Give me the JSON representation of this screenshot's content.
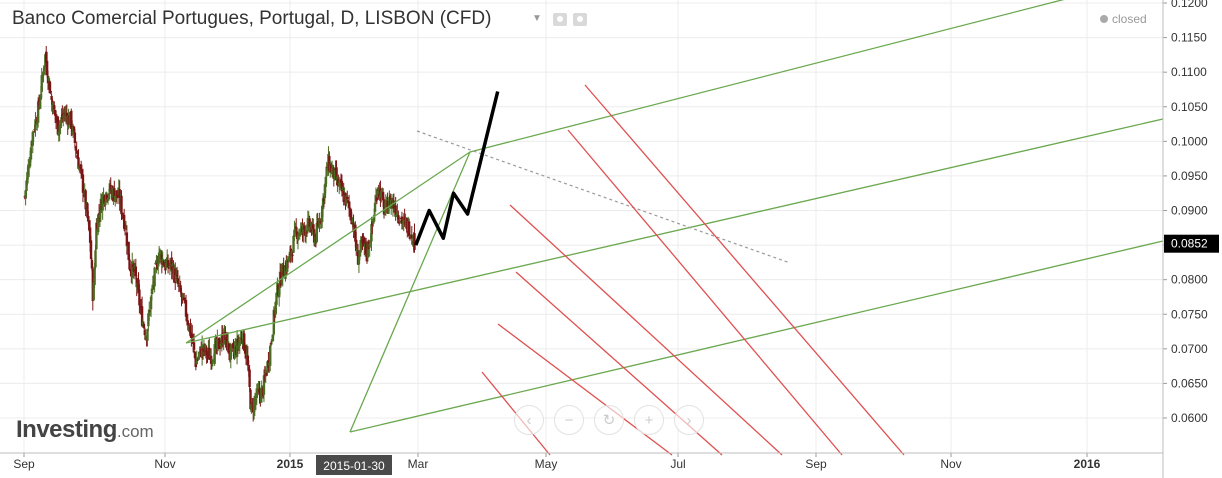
{
  "header": {
    "title": "Banco Comercial Portugues, Portugal, D, LISBON (CFD)",
    "status": "closed",
    "icons": [
      "chevron-down-icon",
      "eye-icon",
      "gear-icon"
    ]
  },
  "logo": {
    "brand": "Investing",
    "suffix": ".com"
  },
  "navigation": [
    {
      "name": "scroll-left-button",
      "glyph": "‹"
    },
    {
      "name": "zoom-out-button",
      "glyph": "−"
    },
    {
      "name": "reset-button",
      "glyph": "↻"
    },
    {
      "name": "zoom-in-button",
      "glyph": "+"
    },
    {
      "name": "scroll-right-button",
      "glyph": "›"
    }
  ],
  "colors": {
    "up_candle": "#4a6b22",
    "down_candle": "#7a1515",
    "pitchfork_green": "#6aa84f",
    "red_lines": "#e05050",
    "projection": "#000000",
    "trend_dashed": "#999999",
    "price_tag_bg": "#000000"
  },
  "chart_data": {
    "type": "candlestick",
    "symbol": "Banco Comercial Portugues, Portugal, D, LISBON (CFD)",
    "x_tick_labels": [
      "Sep",
      "Nov",
      "2015",
      "Mar",
      "May",
      "Jul",
      "Sep",
      "Nov",
      "2016"
    ],
    "crosshair_date_label": "2015-01-30",
    "y_tick_labels": [
      "0.1200",
      "0.1150",
      "0.1100",
      "0.1050",
      "0.1000",
      "0.0950",
      "0.0900",
      "0.0850",
      "0.0800",
      "0.0750",
      "0.0700",
      "0.0650",
      "0.0600"
    ],
    "ylim": [
      0.056,
      0.121
    ],
    "last_price_label": "0.0852",
    "grid": true,
    "price_path": [
      {
        "d": -2,
        "p": 0.092
      },
      {
        "d": 10,
        "p": 0.101
      },
      {
        "d": 20,
        "p": 0.105
      },
      {
        "d": 30,
        "p": 0.1125
      },
      {
        "d": 40,
        "p": 0.106
      },
      {
        "d": 50,
        "p": 0.102
      },
      {
        "d": 60,
        "p": 0.104
      },
      {
        "d": 70,
        "p": 0.103
      },
      {
        "d": 80,
        "p": 0.098
      },
      {
        "d": 90,
        "p": 0.093
      },
      {
        "d": 100,
        "p": 0.086
      },
      {
        "d": 105,
        "p": 0.077
      },
      {
        "d": 110,
        "p": 0.088
      },
      {
        "d": 120,
        "p": 0.092
      },
      {
        "d": 130,
        "p": 0.093
      },
      {
        "d": 145,
        "p": 0.092
      },
      {
        "d": 155,
        "p": 0.088
      },
      {
        "d": 162,
        "p": 0.082
      },
      {
        "d": 170,
        "p": 0.081
      },
      {
        "d": 180,
        "p": 0.075
      },
      {
        "d": 188,
        "p": 0.072
      },
      {
        "d": 198,
        "p": 0.079
      },
      {
        "d": 208,
        "p": 0.084
      },
      {
        "d": 218,
        "p": 0.082
      },
      {
        "d": 228,
        "p": 0.082
      },
      {
        "d": 238,
        "p": 0.079
      },
      {
        "d": 248,
        "p": 0.076
      },
      {
        "d": 258,
        "p": 0.072
      },
      {
        "d": 265,
        "p": 0.068
      },
      {
        "d": 275,
        "p": 0.07
      },
      {
        "d": 288,
        "p": 0.069
      },
      {
        "d": 298,
        "p": 0.07
      },
      {
        "d": 310,
        "p": 0.072
      },
      {
        "d": 320,
        "p": 0.069
      },
      {
        "d": 328,
        "p": 0.07
      },
      {
        "d": 338,
        "p": 0.072
      },
      {
        "d": 345,
        "p": 0.069
      },
      {
        "d": 352,
        "p": 0.061
      },
      {
        "d": 360,
        "p": 0.063
      },
      {
        "d": 370,
        "p": 0.064
      },
      {
        "d": 380,
        "p": 0.069
      },
      {
        "d": 392,
        "p": 0.078
      },
      {
        "d": 400,
        "p": 0.081
      },
      {
        "d": 412,
        "p": 0.083
      },
      {
        "d": 422,
        "p": 0.087
      },
      {
        "d": 432,
        "p": 0.087
      },
      {
        "d": 442,
        "p": 0.088
      },
      {
        "d": 452,
        "p": 0.086
      },
      {
        "d": 462,
        "p": 0.09
      },
      {
        "d": 472,
        "p": 0.097
      },
      {
        "d": 482,
        "p": 0.095
      },
      {
        "d": 492,
        "p": 0.093
      },
      {
        "d": 502,
        "p": 0.091
      },
      {
        "d": 510,
        "p": 0.089
      },
      {
        "d": 518,
        "p": 0.083
      },
      {
        "d": 525,
        "p": 0.085
      },
      {
        "d": 532,
        "p": 0.084
      },
      {
        "d": 540,
        "p": 0.087
      },
      {
        "d": 550,
        "p": 0.094
      },
      {
        "d": 560,
        "p": 0.09
      },
      {
        "d": 570,
        "p": 0.0915
      },
      {
        "d": 580,
        "p": 0.09
      },
      {
        "d": 590,
        "p": 0.088
      },
      {
        "d": 600,
        "p": 0.0875
      },
      {
        "d": 608,
        "p": 0.0852
      }
    ],
    "projection": [
      {
        "d": 609,
        "p": 0.085
      },
      {
        "d": 630,
        "p": 0.09
      },
      {
        "d": 652,
        "p": 0.086
      },
      {
        "d": 668,
        "p": 0.0925
      },
      {
        "d": 690,
        "p": 0.0895
      },
      {
        "d": 737,
        "p": 0.1072
      }
    ]
  }
}
